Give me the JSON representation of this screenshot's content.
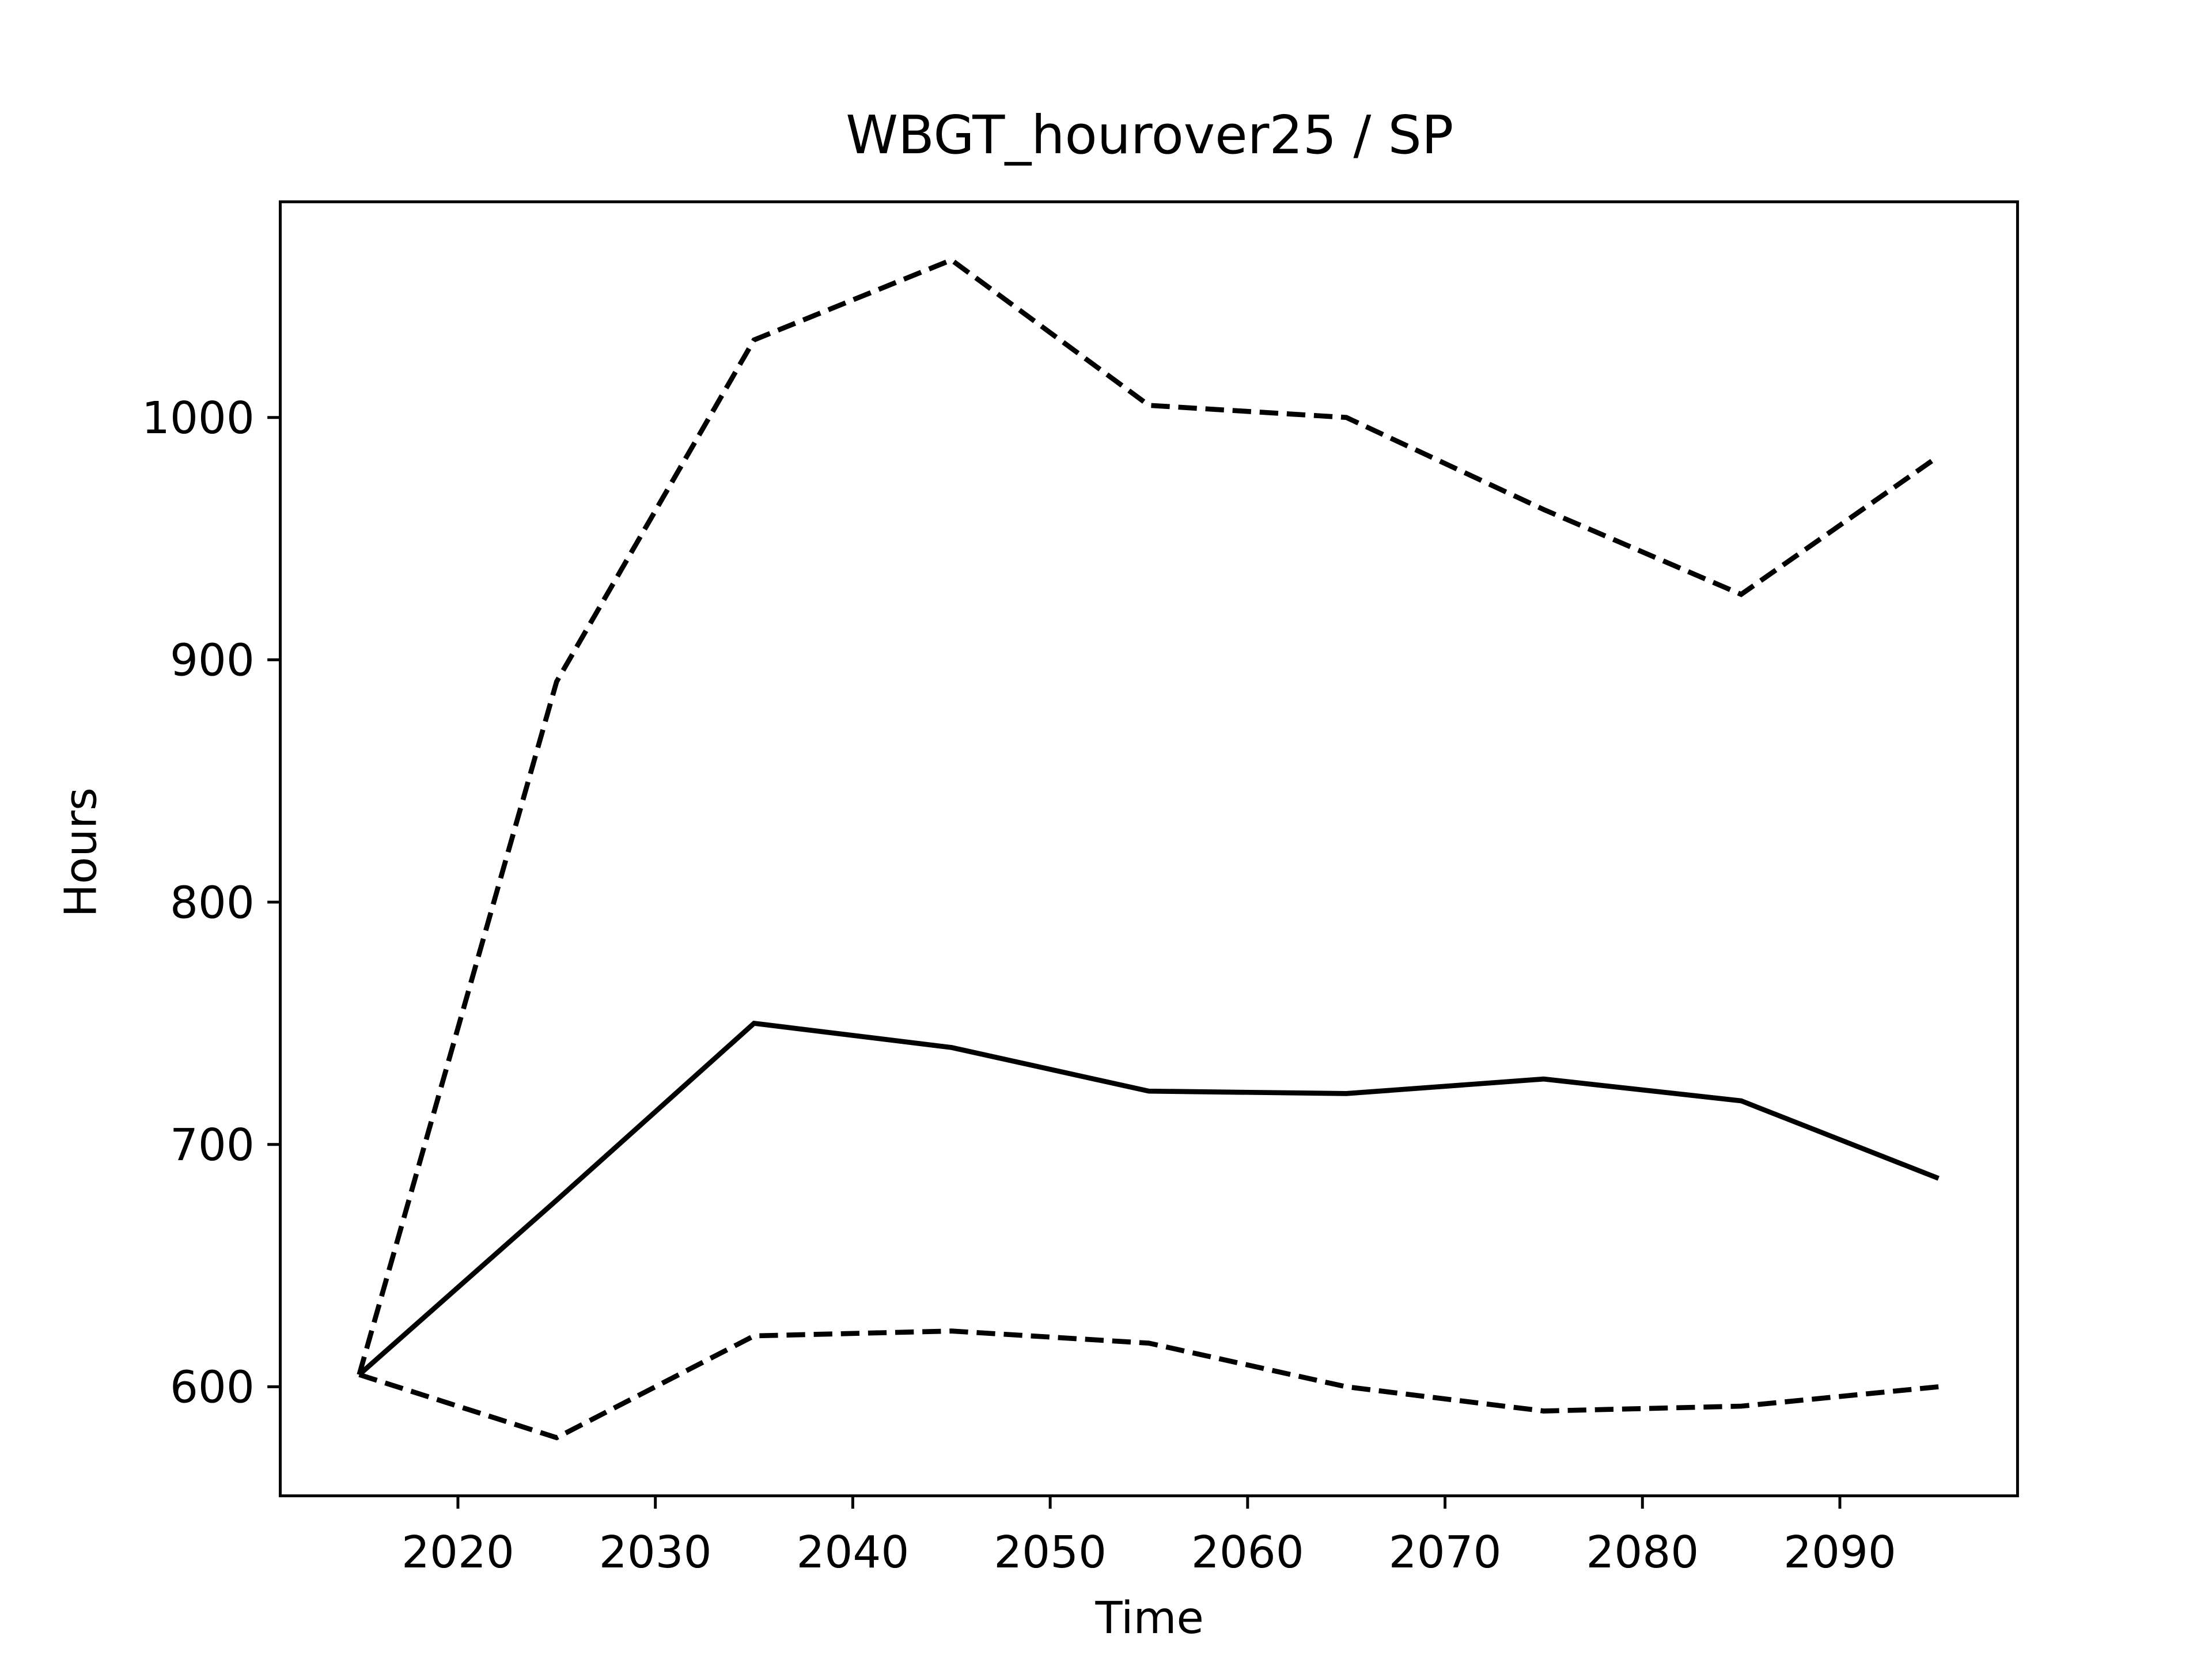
{
  "chart_data": {
    "type": "line",
    "title": "WBGT_hourover25 / SP",
    "xlabel": "Time",
    "ylabel": "Hours",
    "x": [
      2015,
      2025,
      2035,
      2045,
      2055,
      2065,
      2075,
      2085,
      2095
    ],
    "series": [
      {
        "color": "#000000",
        "linestyle": "solid",
        "values": [
          605,
          677,
          750,
          740,
          722,
          721,
          727,
          718,
          686
        ]
      },
      {
        "color": "#000000",
        "linestyle": "dashed",
        "values": [
          605,
          891,
          1032,
          1065,
          1005,
          1000,
          962,
          927,
          984
        ]
      },
      {
        "color": "#000000",
        "linestyle": "dashed",
        "values": [
          605,
          579,
          621,
          623,
          618,
          600,
          590,
          592,
          600
        ]
      }
    ],
    "xlim": [
      2011,
      2099
    ],
    "xticks": [
      2020,
      2030,
      2040,
      2050,
      2060,
      2070,
      2080,
      2090
    ],
    "ylim": [
      555,
      1089
    ],
    "yticks": [
      600,
      700,
      800,
      900,
      1000
    ],
    "grid": false
  }
}
